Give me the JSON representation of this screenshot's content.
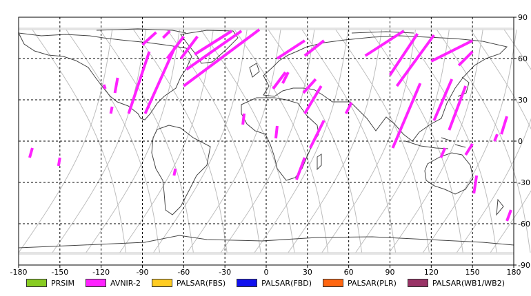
{
  "chart_data": {
    "type": "map",
    "x_ticks": [
      "-180",
      "-150",
      "-120",
      "-90",
      "-60",
      "-30",
      "0",
      "30",
      "60",
      "90",
      "120",
      "150",
      "180"
    ],
    "y_ticks": [
      "90",
      "60",
      "30",
      "0",
      "-30",
      "-60",
      "-90"
    ],
    "xlim": [
      -180,
      180
    ],
    "ylim": [
      -90,
      90
    ],
    "grid": true,
    "legend": [
      {
        "label": "PRSIM",
        "color": "#88cc22"
      },
      {
        "label": "AVNIR-2",
        "color": "#ff22ff"
      },
      {
        "label": "PALSAR(FBS)",
        "color": "#ffcc22"
      },
      {
        "label": "PALSAR(FBD)",
        "color": "#1111ee"
      },
      {
        "label": "PALSAR(PLR)",
        "color": "#ff6611"
      },
      {
        "label": "PALSAR(WB1/WB2)",
        "color": "#993366"
      }
    ],
    "avnir_segments": [
      [
        [
          -80,
          79
        ],
        [
          -90,
          70
        ]
      ],
      [
        [
          -70,
          80
        ],
        [
          -75,
          75
        ]
      ],
      [
        [
          -85,
          65
        ],
        [
          -100,
          20
        ]
      ],
      [
        [
          -66,
          69
        ],
        [
          -88,
          20
        ]
      ],
      [
        [
          -60,
          76
        ],
        [
          -72,
          60
        ]
      ],
      [
        [
          -50,
          76
        ],
        [
          -62,
          60
        ]
      ],
      [
        [
          -25,
          80
        ],
        [
          -52,
          63
        ]
      ],
      [
        [
          -18,
          80
        ],
        [
          -58,
          52
        ]
      ],
      [
        [
          -5,
          81
        ],
        [
          -60,
          40
        ]
      ],
      [
        [
          -118,
          41
        ],
        [
          -117,
          38
        ]
      ],
      [
        [
          -108,
          46
        ],
        [
          -110,
          35
        ]
      ],
      [
        [
          -112,
          25
        ],
        [
          -113,
          20
        ]
      ],
      [
        [
          -170,
          -5
        ],
        [
          -172,
          -12
        ]
      ],
      [
        [
          -150,
          -12
        ],
        [
          -151,
          -18
        ]
      ],
      [
        [
          -66,
          -20
        ],
        [
          -67,
          -25
        ]
      ],
      [
        [
          -16,
          20
        ],
        [
          -17,
          12
        ]
      ],
      [
        [
          8,
          11
        ],
        [
          7,
          2
        ]
      ],
      [
        [
          14,
          50
        ],
        [
          5,
          38
        ]
      ],
      [
        [
          16,
          50
        ],
        [
          12,
          42
        ]
      ],
      [
        [
          28,
          73
        ],
        [
          8,
          60
        ]
      ],
      [
        [
          42,
          73
        ],
        [
          28,
          62
        ]
      ],
      [
        [
          40,
          40
        ],
        [
          28,
          20
        ]
      ],
      [
        [
          36,
          45
        ],
        [
          27,
          35
        ]
      ],
      [
        [
          28,
          -12
        ],
        [
          22,
          -28
        ]
      ],
      [
        [
          42,
          15
        ],
        [
          32,
          -5
        ]
      ],
      [
        [
          62,
          28
        ],
        [
          58,
          20
        ]
      ],
      [
        [
          100,
          80
        ],
        [
          72,
          62
        ]
      ],
      [
        [
          110,
          78
        ],
        [
          90,
          48
        ]
      ],
      [
        [
          122,
          77
        ],
        [
          95,
          40
        ]
      ],
      [
        [
          150,
          73
        ],
        [
          120,
          58
        ]
      ],
      [
        [
          150,
          65
        ],
        [
          140,
          55
        ]
      ],
      [
        [
          112,
          42
        ],
        [
          92,
          -5
        ]
      ],
      [
        [
          135,
          45
        ],
        [
          122,
          15
        ]
      ],
      [
        [
          145,
          40
        ],
        [
          133,
          8
        ]
      ],
      [
        [
          168,
          5
        ],
        [
          166,
          0
        ]
      ],
      [
        [
          153,
          -25
        ],
        [
          151,
          -38
        ]
      ],
      [
        [
          175,
          18
        ],
        [
          171,
          5
        ]
      ],
      [
        [
          178,
          -50
        ],
        [
          175,
          -58
        ]
      ],
      [
        [
          130,
          -5
        ],
        [
          127,
          -12
        ]
      ],
      [
        [
          150,
          -2
        ],
        [
          145,
          -10
        ]
      ]
    ]
  }
}
